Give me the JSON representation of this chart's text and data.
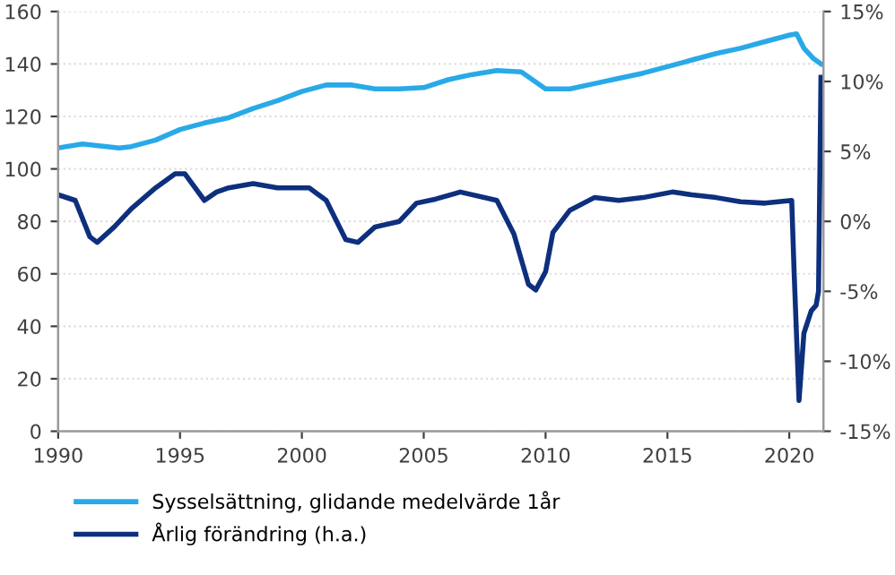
{
  "chart_data": {
    "type": "line",
    "x": [
      1990,
      1991,
      1992.5,
      1993,
      1994,
      1995,
      1996,
      1997,
      1998,
      1999,
      2000,
      2001,
      2002,
      2003,
      2004,
      2005,
      2006,
      2007,
      2008,
      2009,
      2010,
      2011,
      2012,
      2013,
      2014,
      2015,
      2016,
      2017,
      2018,
      2019,
      2020,
      2020.3,
      2020.6,
      2021,
      2021.3
    ],
    "series": [
      {
        "name": "Sysselsättning, glidande medelvärde 1år",
        "color": "#29a9e8",
        "values": [
          108,
          109.5,
          108,
          108.5,
          111,
          115,
          117.5,
          119.5,
          123,
          126,
          129.5,
          132,
          132,
          130.5,
          130.5,
          131,
          134,
          136,
          137.5,
          137,
          130.5,
          130.5,
          132.5,
          134.5,
          136.5,
          139,
          141.5,
          144,
          146,
          148.5,
          151,
          151.5,
          146,
          142,
          140
        ]
      },
      {
        "name": "Årlig förändring (h.a.)",
        "color": "#0d2f7e",
        "axis": "y2",
        "x": [
          1990,
          1990.7,
          1991.3,
          1991.6,
          1992.3,
          1993,
          1994,
          1994.8,
          1995.2,
          1996,
          1996.5,
          1997,
          1998,
          1999,
          2000.3,
          2001,
          2001.8,
          2002.3,
          2003,
          2004,
          2004.7,
          2005.5,
          2006.5,
          2008,
          2008.7,
          2009.3,
          2009.6,
          2010,
          2010.3,
          2011,
          2012,
          2013,
          2014,
          2015.2,
          2016,
          2017,
          2018,
          2019,
          2020.1,
          2020.2,
          2020.4,
          2020.6,
          2020.9,
          2021.1,
          2021.2,
          2021.3
        ],
        "values": [
          1.9,
          1.5,
          -1.1,
          -1.5,
          -0.4,
          0.9,
          2.4,
          3.4,
          3.4,
          1.5,
          2.1,
          2.4,
          2.7,
          2.4,
          2.4,
          1.5,
          -1.3,
          -1.5,
          -0.4,
          0,
          1.3,
          1.6,
          2.1,
          1.5,
          -0.9,
          -4.5,
          -4.9,
          -3.6,
          -0.8,
          0.8,
          1.7,
          1.5,
          1.7,
          2.1,
          1.9,
          1.7,
          1.4,
          1.3,
          1.5,
          -3.7,
          -12.8,
          -8,
          -6.4,
          -6,
          -5,
          10.3
        ]
      }
    ],
    "xlim": [
      1990,
      2021.4
    ],
    "xticks": [
      1990,
      1995,
      2000,
      2005,
      2010,
      2015,
      2020
    ],
    "ylim": [
      0,
      160
    ],
    "yticks": [
      0,
      20,
      40,
      60,
      80,
      100,
      120,
      140,
      160
    ],
    "y2lim": [
      -15,
      15
    ],
    "y2ticks": [
      {
        "value": -15,
        "label": "-15%"
      },
      {
        "value": -10,
        "label": "-10%"
      },
      {
        "value": -5,
        "label": "-5%"
      },
      {
        "value": 0,
        "label": "0%"
      },
      {
        "value": 5,
        "label": "5%"
      },
      {
        "value": 10,
        "label": "10%"
      },
      {
        "value": 15,
        "label": "15%"
      }
    ],
    "grid": "y",
    "legend": "bottom",
    "line_style": "solid",
    "marker": "none"
  }
}
